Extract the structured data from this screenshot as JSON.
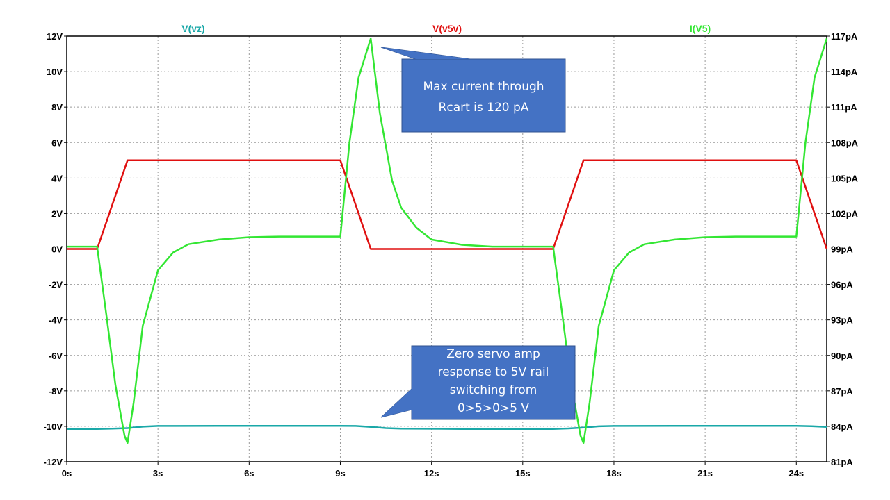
{
  "chart_data": {
    "type": "line",
    "x_axis": {
      "range": [
        0,
        25
      ],
      "tick_labels": [
        "0s",
        "3s",
        "6s",
        "9s",
        "12s",
        "15s",
        "18s",
        "21s",
        "24s"
      ],
      "tick_values": [
        0,
        3,
        6,
        9,
        12,
        15,
        18,
        21,
        24
      ]
    },
    "y_left": {
      "range": [
        -12,
        12
      ],
      "tick_labels": [
        "12V",
        "10V",
        "8V",
        "6V",
        "4V",
        "2V",
        "0V",
        "-2V",
        "-4V",
        "-6V",
        "-8V",
        "-10V",
        "-12V"
      ],
      "tick_values": [
        12,
        10,
        8,
        6,
        4,
        2,
        0,
        -2,
        -4,
        -6,
        -8,
        -10,
        -12
      ]
    },
    "y_right": {
      "range": [
        81,
        117
      ],
      "tick_labels": [
        "117pA",
        "114pA",
        "111pA",
        "108pA",
        "105pA",
        "102pA",
        "99pA",
        "96pA",
        "93pA",
        "90pA",
        "87pA",
        "84pA",
        "81pA"
      ],
      "tick_values": [
        117,
        114,
        111,
        108,
        105,
        102,
        99,
        96,
        93,
        90,
        87,
        84,
        81
      ]
    },
    "grid": true,
    "series": [
      {
        "name": "V(vz)",
        "axis": "left",
        "color": "#1aa8a8",
        "x": [
          0,
          1,
          1.5,
          2,
          2.5,
          3,
          5,
          8,
          9,
          9.5,
          10,
          10.5,
          11,
          13,
          15,
          16,
          16.5,
          17,
          17.5,
          18,
          20,
          23,
          24,
          24.5,
          25
        ],
        "y": [
          -10.15,
          -10.15,
          -10.13,
          -10.1,
          -10.02,
          -9.98,
          -9.97,
          -9.97,
          -9.97,
          -9.98,
          -10.03,
          -10.1,
          -10.13,
          -10.15,
          -10.15,
          -10.15,
          -10.12,
          -10.07,
          -10.0,
          -9.98,
          -9.97,
          -9.97,
          -9.97,
          -9.99,
          -10.03
        ]
      },
      {
        "name": "V(v5v)",
        "axis": "left",
        "color": "#e01010",
        "x": [
          0,
          1,
          2,
          9,
          10,
          16,
          17,
          24,
          25
        ],
        "y": [
          0,
          0,
          5,
          5,
          0,
          0,
          5,
          5,
          0
        ]
      },
      {
        "name": "I(V5)",
        "axis": "right",
        "color": "#33e633",
        "x": [
          0,
          1,
          1.3,
          1.6,
          1.9,
          2.0,
          2.2,
          2.5,
          3.0,
          3.5,
          4.0,
          5.0,
          6.0,
          7.0,
          8.0,
          9.0,
          9.3,
          9.6,
          10.0,
          10.3,
          10.7,
          11.0,
          11.5,
          12.0,
          13.0,
          14.0,
          15.0,
          16.0,
          16.3,
          16.6,
          16.9,
          17.0,
          17.2,
          17.5,
          18.0,
          18.5,
          19.0,
          20.0,
          21.0,
          22.0,
          23.0,
          24.0,
          24.3,
          24.6,
          25.0
        ],
        "y": [
          99.2,
          99.2,
          93.5,
          87.5,
          83.2,
          82.6,
          86.0,
          92.5,
          97.2,
          98.7,
          99.4,
          99.8,
          100.0,
          100.05,
          100.05,
          100.05,
          108.0,
          113.5,
          116.8,
          110.5,
          104.8,
          102.5,
          100.8,
          99.8,
          99.35,
          99.2,
          99.2,
          99.2,
          93.5,
          87.5,
          83.2,
          82.6,
          86.0,
          92.5,
          97.2,
          98.7,
          99.4,
          99.8,
          100.0,
          100.05,
          100.05,
          100.05,
          108.0,
          113.5,
          116.8
        ]
      }
    ],
    "annotations": [
      {
        "lines": [
          "Max current through",
          "Rcart is 120 pA"
        ],
        "fill": "#4472c4",
        "pointer_to": {
          "x": 10.2,
          "series": "I(V5)"
        }
      },
      {
        "lines": [
          "Zero servo amp",
          "response to 5V rail",
          "switching from",
          "0>5>0>5 V"
        ],
        "fill": "#4472c4",
        "pointer_to": {
          "x": 11.5,
          "series": "V(vz)"
        }
      }
    ]
  }
}
